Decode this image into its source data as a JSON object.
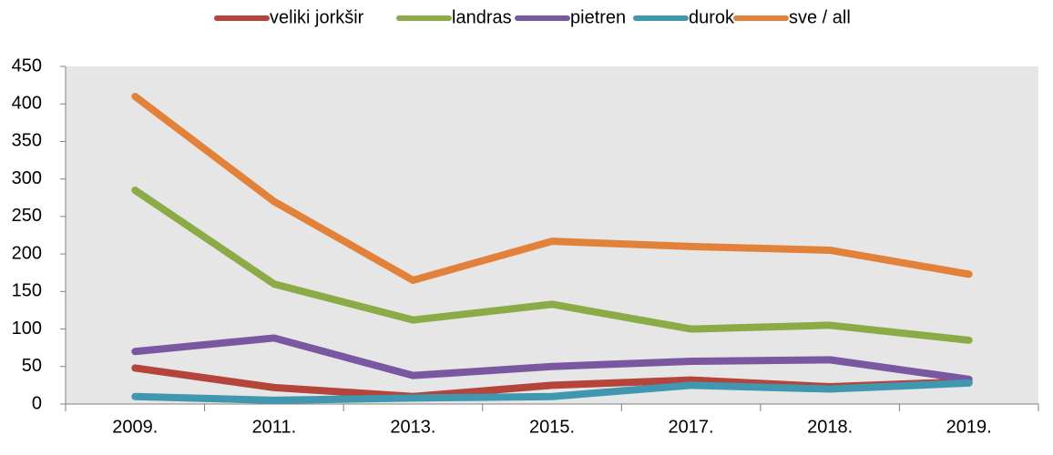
{
  "chart_data": {
    "type": "line",
    "categories": [
      "2009.",
      "2011.",
      "2013.",
      "2015.",
      "2017.",
      "2018.",
      "2019."
    ],
    "series": [
      {
        "name": "veliki jorkšir",
        "color": "#b5443a",
        "values": [
          48,
          22,
          10,
          25,
          32,
          23,
          30
        ]
      },
      {
        "name": "landras",
        "color": "#8aab46",
        "values": [
          285,
          160,
          112,
          133,
          100,
          105,
          85
        ]
      },
      {
        "name": "pietren",
        "color": "#7a57a1",
        "values": [
          70,
          88,
          38,
          50,
          57,
          59,
          33
        ]
      },
      {
        "name": "durok",
        "color": "#3f97b0",
        "values": [
          10,
          5,
          8,
          10,
          25,
          20,
          28
        ]
      },
      {
        "name": "sve / all",
        "color": "#e2823a",
        "values": [
          410,
          270,
          165,
          217,
          210,
          205,
          173
        ]
      }
    ],
    "ylim": [
      0,
      450
    ],
    "yticks": [
      0,
      50,
      100,
      150,
      200,
      250,
      300,
      350,
      400,
      450
    ],
    "legend": "top"
  }
}
